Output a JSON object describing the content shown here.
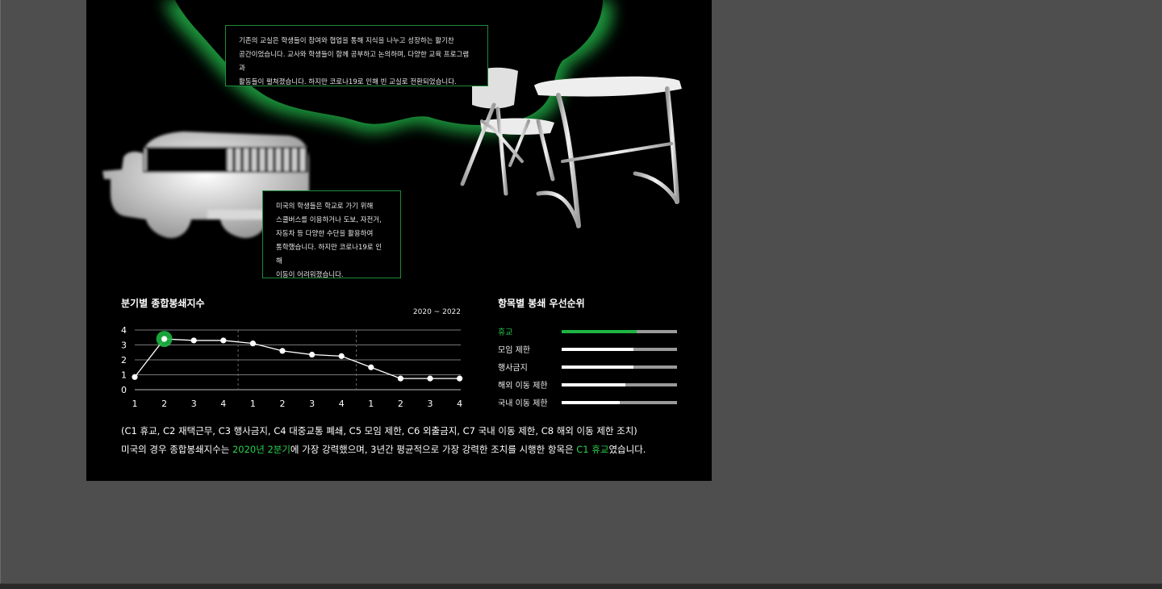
{
  "callout_classroom": {
    "lines": [
      "기존의 교실은 학생들이 참여와 협업을 통해 지식을 나누고 성장하는 활기찬",
      "공간이었습니다. 교사와 학생들이 함께 공부하고 논의하며, 다양한 교육 프로그램과",
      "활동들이 펼쳐졌습니다. 하지만 코로나19로 인해 빈 교실로 전환되었습니다."
    ]
  },
  "callout_bus": {
    "lines": [
      "미국의 학생들은 학교로 가기 위해",
      "스쿨버스를 이용하거나 도보, 자전거,",
      "자동차 등 다양한 수단을 활용하여",
      "통학했습니다. 하지만 코로나19로 인해",
      "이동이 어려워졌습니다."
    ]
  },
  "chart_data": {
    "type": "line",
    "title": "분기별  종합봉쇄지수",
    "subtitle": "2020 ~ 2022",
    "x_ticks": [
      "1",
      "2",
      "3",
      "4",
      "1",
      "2",
      "3",
      "4",
      "1",
      "2",
      "3",
      "4"
    ],
    "y_ticks": [
      "0",
      "1",
      "2",
      "3",
      "4"
    ],
    "ylim": [
      0,
      4
    ],
    "values": [
      0.85,
      3.4,
      3.3,
      3.3,
      3.1,
      2.6,
      2.35,
      2.25,
      1.5,
      0.75,
      0.75,
      0.75
    ],
    "highlight_index": 1,
    "grid": true,
    "year_dividers_after": [
      4,
      8
    ],
    "colors": {
      "line": "#ffffff",
      "highlight": "#1db543",
      "grid": "#777777"
    }
  },
  "ranking": {
    "title": "항목별  봉쇄  우선순위",
    "items": [
      {
        "label": "휴교",
        "value": 0.65,
        "accent": true
      },
      {
        "label": "모임 제한",
        "value": 0.62,
        "accent": false
      },
      {
        "label": "행사금지",
        "value": 0.62,
        "accent": false
      },
      {
        "label": "해외 이동 제한",
        "value": 0.55,
        "accent": false
      },
      {
        "label": "국내 이동 제한",
        "value": 0.5,
        "accent": false
      }
    ]
  },
  "notes": {
    "legend": "(C1 휴교, C2 재택근무, C3 행사금지, C4 대중교통 폐쇄, C5 모임 제한, C6 외출금지, C7 국내 이동 제한, C8 해외 이동 제한 조치)",
    "summary_parts": [
      "미국의 경우 종합봉쇄지수는 ",
      "2020년 2분기",
      "에 가장 강력했으며, 3년간 평균적으로 가장 강력한 조치를 시행한 항목은 ",
      "C1 휴교",
      "였습니다."
    ]
  },
  "colors": {
    "accent": "#1db543",
    "artboard": "#000000",
    "canvas": "#4e4e4e"
  },
  "icons": [
    "school-bus-icon",
    "chair-icon",
    "desk-icon",
    "green-glow-icon"
  ]
}
